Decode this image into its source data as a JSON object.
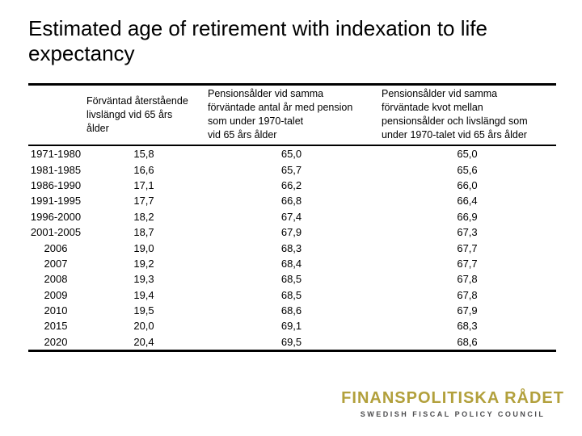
{
  "slide": {
    "title": "Estimated age of retirement with indexation to life expectancy"
  },
  "table": {
    "columns": [
      {
        "header": ""
      },
      {
        "header": "Förväntad återstående\nlivslängd vid 65 års\nålder"
      },
      {
        "header": "Pensionsålder vid samma\nförväntade antal år med pension\nsom under 1970-talet\nvid 65 års ålder"
      },
      {
        "header": "Pensionsålder vid samma\nförväntade kvot mellan\npensionsålder och livslängd som\nunder 1970-talet vid 65 års ålder"
      }
    ],
    "rows": [
      {
        "period": "1971-1980",
        "remaining_life": "15,8",
        "pension_same_years": "65,0",
        "pension_same_ratio": "65,0"
      },
      {
        "period": "1981-1985",
        "remaining_life": "16,6",
        "pension_same_years": "65,7",
        "pension_same_ratio": "65,6"
      },
      {
        "period": "1986-1990",
        "remaining_life": "17,1",
        "pension_same_years": "66,2",
        "pension_same_ratio": "66,0"
      },
      {
        "period": "1991-1995",
        "remaining_life": "17,7",
        "pension_same_years": "66,8",
        "pension_same_ratio": "66,4"
      },
      {
        "period": "1996-2000",
        "remaining_life": "18,2",
        "pension_same_years": "67,4",
        "pension_same_ratio": "66,9"
      },
      {
        "period": "2001-2005",
        "remaining_life": "18,7",
        "pension_same_years": "67,9",
        "pension_same_ratio": "67,3"
      },
      {
        "period": "2006",
        "remaining_life": "19,0",
        "pension_same_years": "68,3",
        "pension_same_ratio": "67,7"
      },
      {
        "period": "2007",
        "remaining_life": "19,2",
        "pension_same_years": "68,4",
        "pension_same_ratio": "67,7"
      },
      {
        "period": "2008",
        "remaining_life": "19,3",
        "pension_same_years": "68,5",
        "pension_same_ratio": "67,8"
      },
      {
        "period": "2009",
        "remaining_life": "19,4",
        "pension_same_years": "68,5",
        "pension_same_ratio": "67,8"
      },
      {
        "period": "2010",
        "remaining_life": "19,5",
        "pension_same_years": "68,6",
        "pension_same_ratio": "67,9"
      },
      {
        "period": "2015",
        "remaining_life": "20,0",
        "pension_same_years": "69,1",
        "pension_same_ratio": "68,3"
      },
      {
        "period": "2020",
        "remaining_life": "20,4",
        "pension_same_years": "69,5",
        "pension_same_ratio": "68,6"
      }
    ]
  },
  "logo": {
    "name": "FINANSPOLITISKA RÅDET",
    "subtitle": "SWEDISH FISCAL POLICY COUNCIL",
    "name_color": "#b2a03c",
    "subtitle_color": "#4d4d4f"
  }
}
